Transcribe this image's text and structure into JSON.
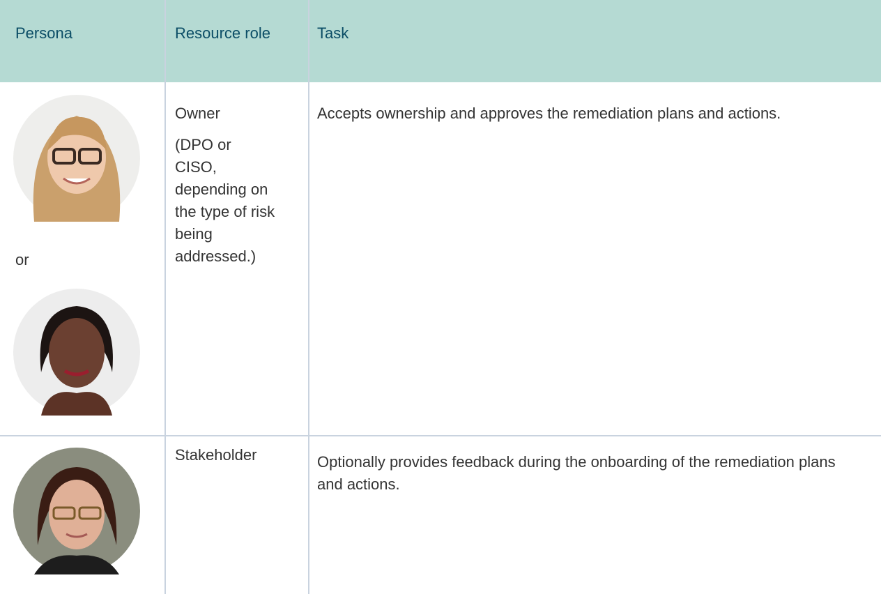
{
  "table": {
    "header": [
      "Persona",
      "Resource role",
      "Task"
    ],
    "rows": [
      {
        "persona_separator": "or",
        "role": "Owner",
        "role_note_lines": [
          "(DPO or",
          "CISO,",
          "depending on",
          "the type of risk",
          "being",
          "addressed.)"
        ],
        "task": "Accepts ownership and approves the remediation plans and actions."
      },
      {
        "role": "Stakeholder",
        "task": "Optionally provides feedback during the onboarding of the remediation plans and actions."
      }
    ]
  }
}
